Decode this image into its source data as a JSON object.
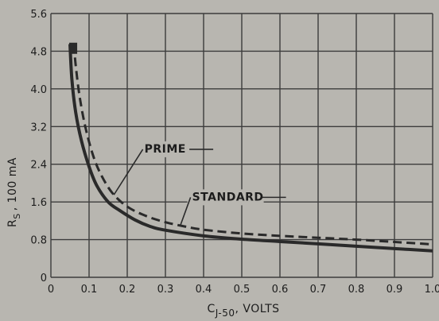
{
  "chart_data": {
    "type": "line",
    "title": "",
    "xlabel": "C J-50 , VOLTS",
    "xlabel_main": "C",
    "xlabel_sub": "J-50",
    "xlabel_tail": ", VOLTS",
    "ylabel": "R S , 100 mA",
    "ylabel_main": "R",
    "ylabel_sub": "S",
    "ylabel_tail": ", 100 mA",
    "xlim": [
      0,
      1.0
    ],
    "ylim": [
      0,
      5.6
    ],
    "xticks": [
      "0",
      "0.1",
      "0.2",
      "0.3",
      "0.4",
      "0.5",
      "0.6",
      "0.7",
      "0.8",
      "0.9",
      "1.0"
    ],
    "yticks": [
      "0",
      "0.8",
      "1.6",
      "2.4",
      "3.2",
      "4.0",
      "4.8",
      "5.6"
    ],
    "grid": true,
    "series": [
      {
        "name": "PRIME",
        "style": "solid",
        "x": [
          0.05,
          0.055,
          0.065,
          0.08,
          0.1,
          0.12,
          0.15,
          0.18,
          0.22,
          0.26,
          0.3,
          0.4,
          0.5,
          0.6,
          0.7,
          0.8,
          0.9,
          1.0
        ],
        "y": [
          4.95,
          4.2,
          3.5,
          2.9,
          2.35,
          1.95,
          1.6,
          1.42,
          1.22,
          1.08,
          1.0,
          0.88,
          0.81,
          0.76,
          0.71,
          0.66,
          0.61,
          0.56
        ]
      },
      {
        "name": "STANDARD",
        "style": "dashed",
        "x": [
          0.06,
          0.065,
          0.075,
          0.09,
          0.11,
          0.13,
          0.16,
          0.2,
          0.25,
          0.3,
          0.35,
          0.4,
          0.5,
          0.6,
          0.7,
          0.8,
          0.9,
          1.0
        ],
        "y": [
          4.95,
          4.5,
          3.85,
          3.2,
          2.6,
          2.2,
          1.8,
          1.5,
          1.3,
          1.17,
          1.08,
          1.01,
          0.93,
          0.88,
          0.84,
          0.8,
          0.75,
          0.7
        ]
      }
    ],
    "annotations": [
      {
        "text": "PRIME",
        "x": 0.245,
        "y": 2.65,
        "target_x": 0.165,
        "target_y": 1.75
      },
      {
        "text": "STANDARD",
        "x": 0.37,
        "y": 1.63,
        "target_x": 0.34,
        "target_y": 1.12
      }
    ],
    "colors": {
      "line": "#2a2a2a",
      "grid": "#3c3c3c",
      "background": "#b8b6b0"
    }
  }
}
